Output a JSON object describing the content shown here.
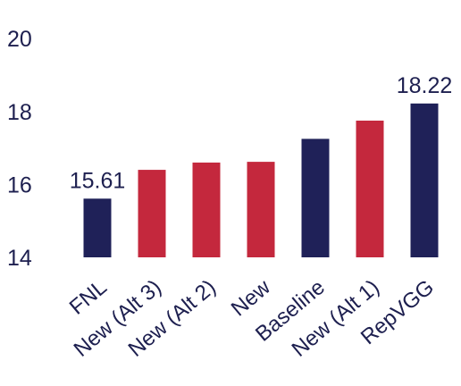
{
  "chart_data": {
    "type": "bar",
    "categories": [
      "FNL",
      "New (Alt 3)",
      "New (Alt 2)",
      "New",
      "Baseline",
      "New (Alt 1)",
      "RepVGG"
    ],
    "values": [
      15.61,
      16.4,
      16.6,
      16.62,
      17.25,
      17.75,
      18.22
    ],
    "colors": [
      "#1f2158",
      "#c4283d",
      "#c4283d",
      "#c4283d",
      "#1f2158",
      "#c4283d",
      "#1f2158"
    ],
    "data_labels": [
      "15.61",
      "",
      "",
      "",
      "",
      "",
      "18.22"
    ],
    "yticks": [
      "14",
      "16",
      "18",
      "20"
    ],
    "ylim": [
      14,
      20
    ],
    "grid": false,
    "legend": "none",
    "title": "",
    "xlabel": "",
    "ylabel": ""
  }
}
